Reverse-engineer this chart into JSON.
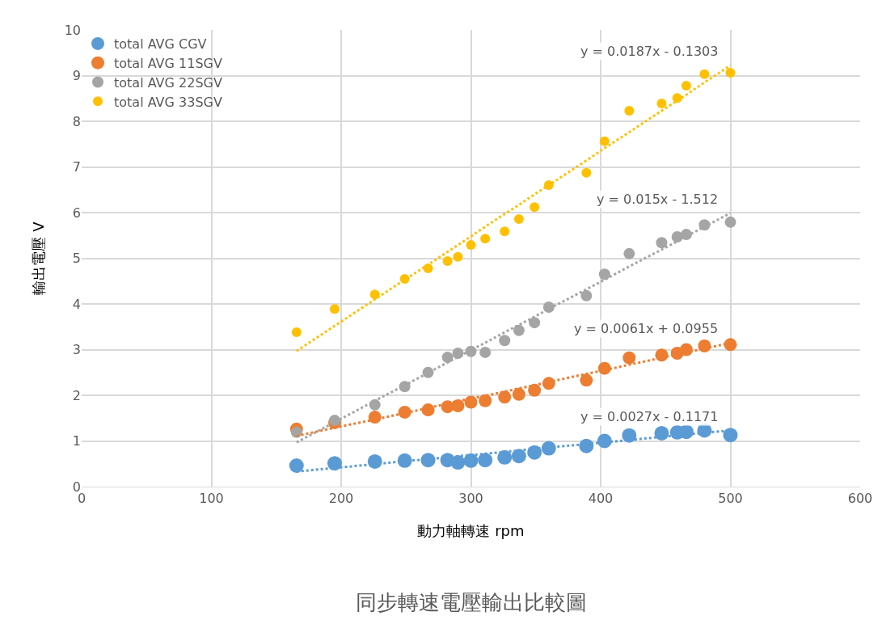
{
  "chart_data": {
    "type": "scatter",
    "xlabel": "動力軸轉速 rpm",
    "ylabel": "輸出電壓 V",
    "x": [
      165.6,
      195,
      226,
      249,
      267,
      282,
      290,
      300,
      311,
      326,
      337,
      349,
      360,
      389,
      403,
      422,
      447,
      459,
      466,
      480,
      500
    ],
    "series": [
      {
        "name": "total AVG CGV",
        "color": "#5b9bd5",
        "values": [
          0.46,
          0.51,
          0.55,
          0.57,
          0.58,
          0.58,
          0.53,
          0.57,
          0.58,
          0.64,
          0.67,
          0.75,
          0.84,
          0.89,
          1.0,
          1.12,
          1.17,
          1.19,
          1.2,
          1.23,
          1.13
        ]
      },
      {
        "name": "total AVG 11SGV",
        "color": "#ed7d31",
        "values": [
          1.26,
          1.4,
          1.52,
          1.63,
          1.68,
          1.75,
          1.77,
          1.85,
          1.88,
          1.96,
          2.02,
          2.11,
          2.26,
          2.33,
          2.59,
          2.82,
          2.88,
          2.92,
          3.0,
          3.08,
          3.11
        ]
      },
      {
        "name": "total AVG 22SGV",
        "color": "#a5a5a5",
        "values": [
          1.19,
          1.45,
          1.79,
          2.19,
          2.5,
          2.83,
          2.92,
          2.96,
          2.94,
          3.2,
          3.42,
          3.59,
          3.93,
          4.18,
          4.65,
          5.1,
          5.34,
          5.47,
          5.52,
          5.73,
          5.79
        ]
      },
      {
        "name": "total AVG 33SGV",
        "color": "#ffc000",
        "values": [
          3.38,
          3.89,
          4.21,
          4.55,
          4.78,
          4.94,
          5.03,
          5.29,
          5.43,
          5.59,
          5.86,
          6.12,
          6.6,
          6.87,
          7.56,
          8.23,
          8.39,
          8.51,
          8.78,
          9.03,
          9.06
        ]
      },
      {
        "type": "line",
        "color": "#5b9bd5",
        "values": [
          0.33,
          0.41,
          0.49,
          0.56,
          0.6,
          0.64,
          0.67,
          0.69,
          0.72,
          0.76,
          0.79,
          0.83,
          0.86,
          0.93,
          0.97,
          1.02,
          1.09,
          1.12,
          1.14,
          1.18,
          1.23
        ],
        "line_style": "dotted",
        "marker": "none"
      },
      {
        "type": "line",
        "color": "#ed7d31",
        "values": [
          1.11,
          1.29,
          1.47,
          1.61,
          1.72,
          1.82,
          1.87,
          1.93,
          1.99,
          2.08,
          2.15,
          2.22,
          2.29,
          2.47,
          2.55,
          2.67,
          2.82,
          2.9,
          2.94,
          3.02,
          3.15
        ],
        "line_style": "dotted",
        "marker": "none"
      },
      {
        "type": "line",
        "color": "#a5a5a5",
        "values": [
          0.97,
          1.41,
          1.88,
          2.22,
          2.49,
          2.72,
          2.84,
          2.99,
          3.15,
          3.38,
          3.54,
          3.72,
          3.89,
          4.32,
          4.53,
          4.82,
          5.19,
          5.37,
          5.48,
          5.69,
          5.99
        ],
        "line_style": "dotted",
        "marker": "none"
      },
      {
        "type": "line",
        "color": "#ffc000",
        "values": [
          2.97,
          3.52,
          4.1,
          4.53,
          4.86,
          5.14,
          5.29,
          5.48,
          5.69,
          5.97,
          6.17,
          6.4,
          6.6,
          7.14,
          7.41,
          7.76,
          8.23,
          8.45,
          8.58,
          8.85,
          9.22
        ],
        "line_style": "dotted",
        "marker": "none"
      }
    ],
    "xlim": [
      0,
      600
    ],
    "xticks": [
      0,
      100,
      200,
      300,
      400,
      500,
      600
    ],
    "ylim": [
      0,
      10
    ],
    "yticks": [
      0,
      1,
      2,
      3,
      4,
      5,
      6,
      7,
      8,
      9,
      10
    ],
    "grid": true,
    "legend": "top left",
    "marker": "circle",
    "annotations": [
      "y = 0.0027x - 0.1171",
      "y = 0.0061x + 0.0955",
      "y = 0.015x - 1.512",
      "y = 0.0187x - 0.1303",
      "同步轉速電壓輸出比較圖"
    ]
  }
}
